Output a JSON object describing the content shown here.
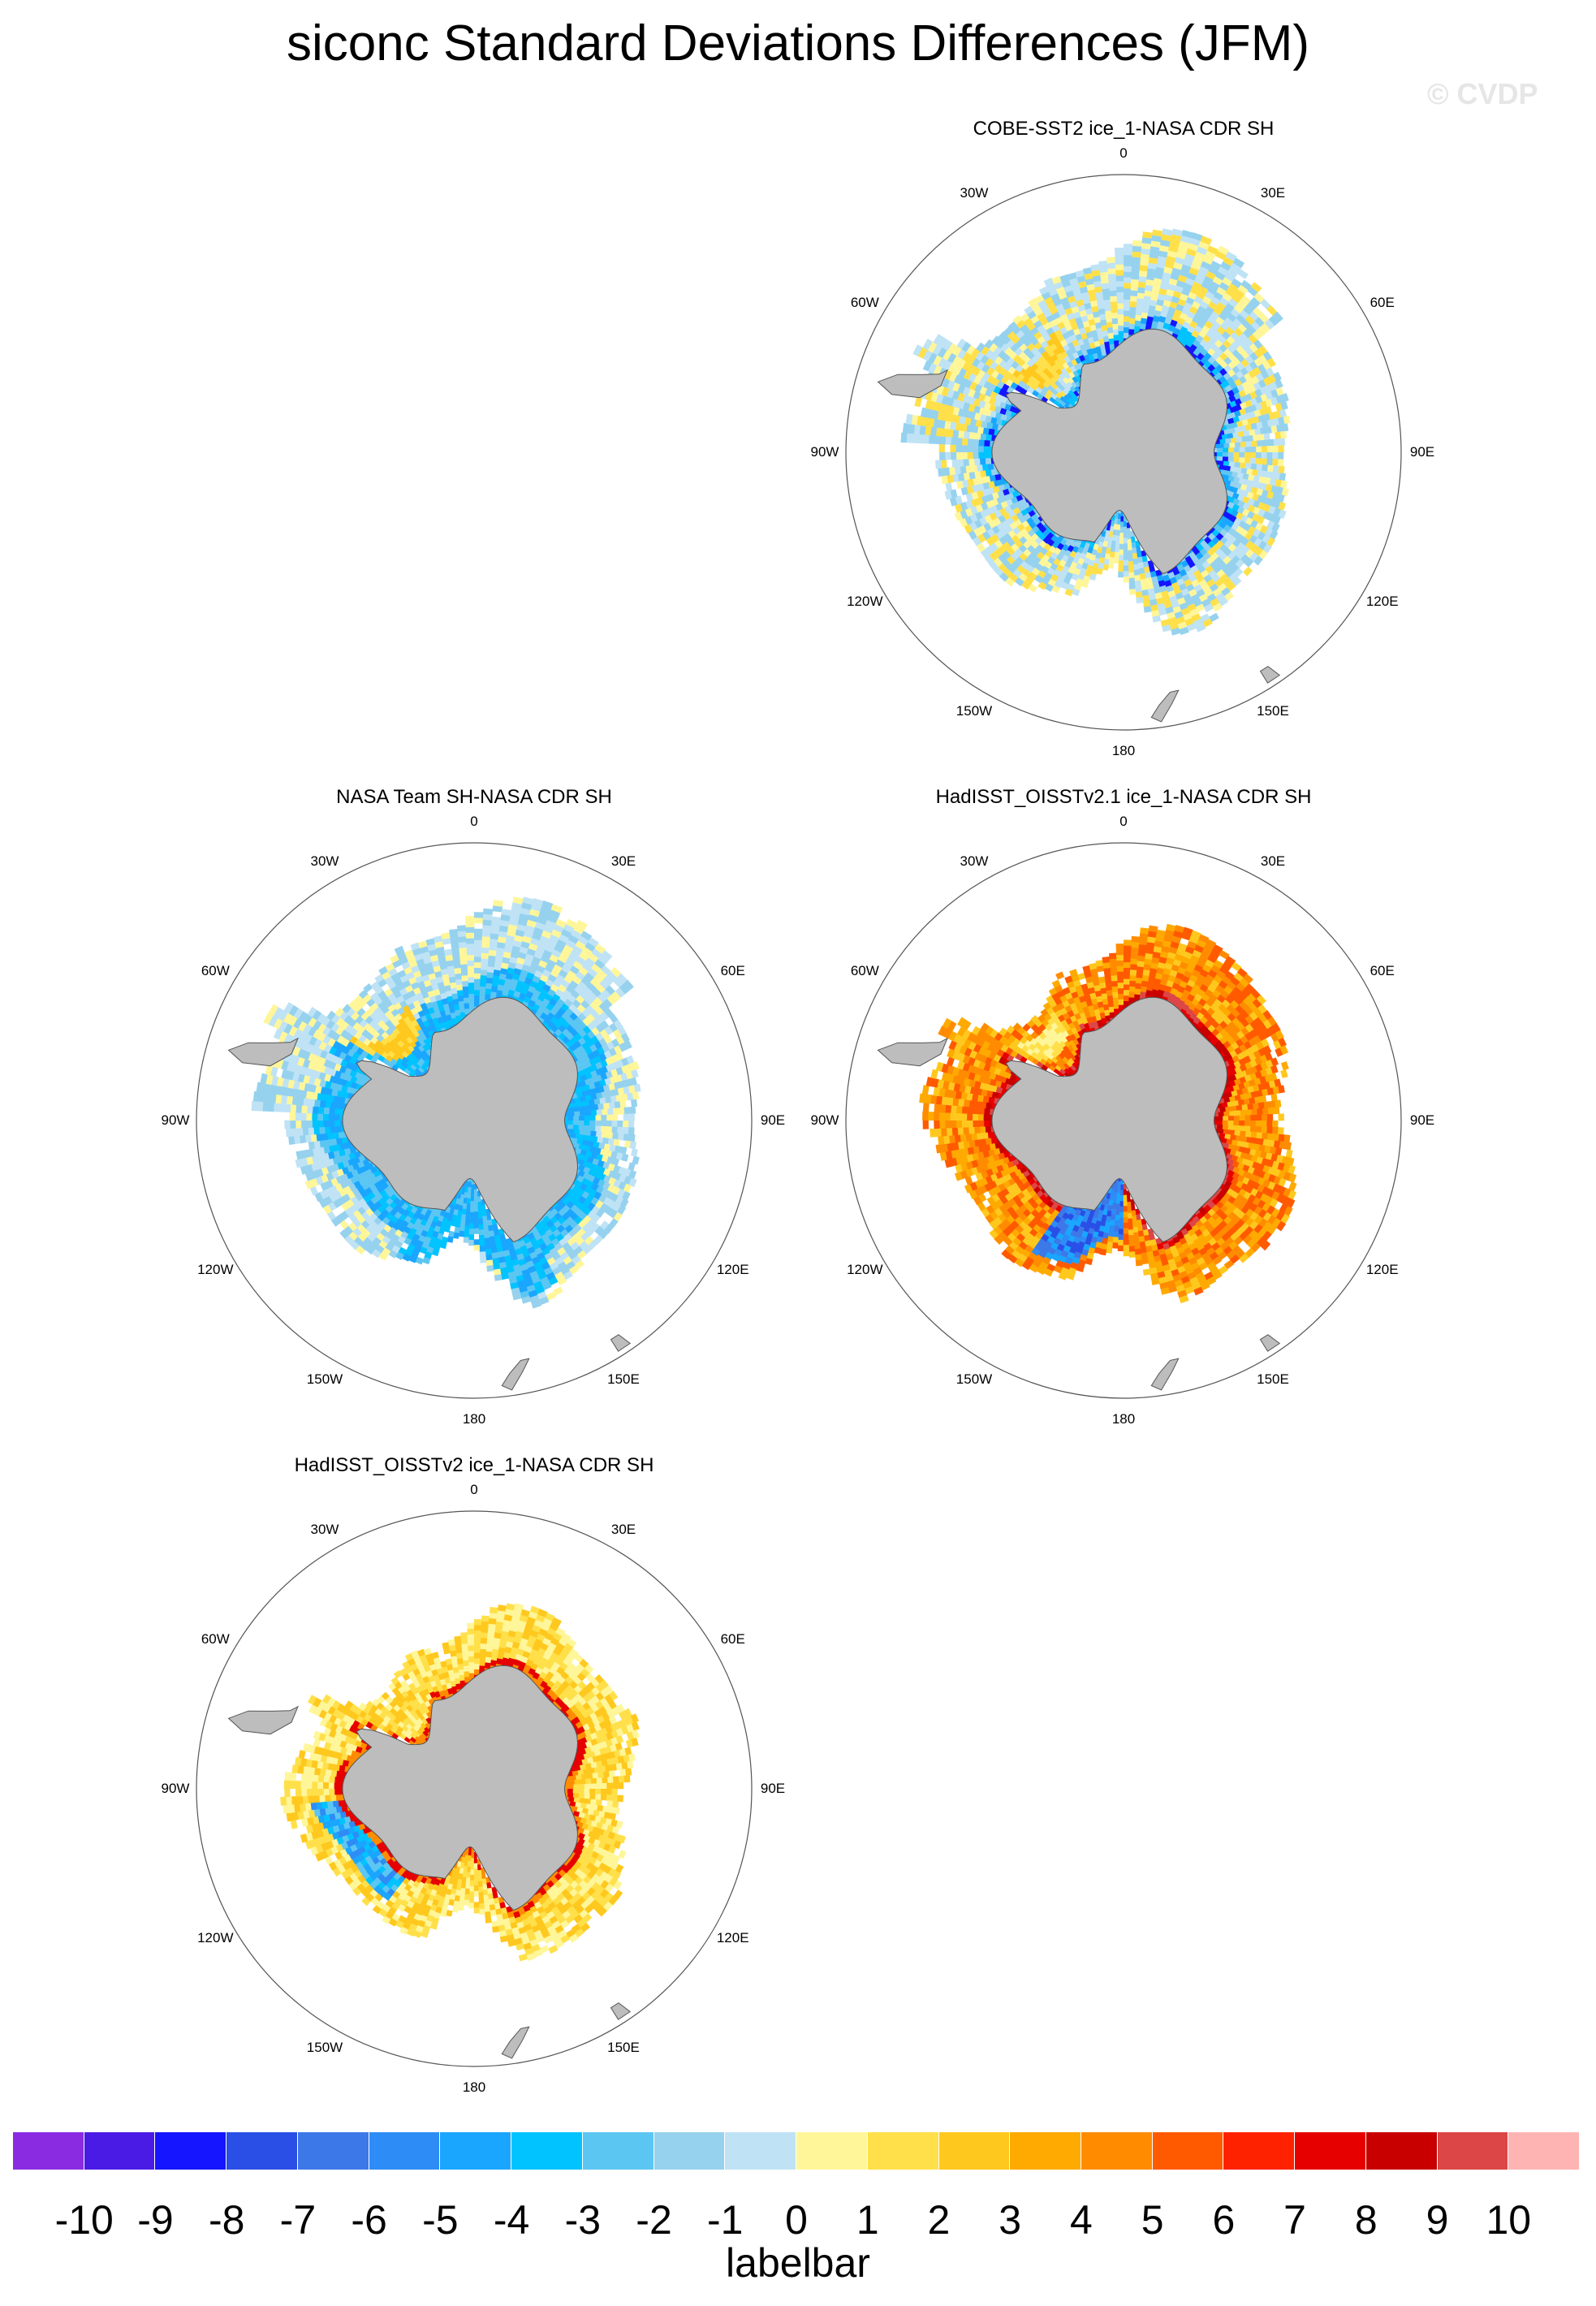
{
  "figure": {
    "title": "siconc Standard Deviations Differences (JFM)",
    "copyright": "© CVDP"
  },
  "panels": [
    {
      "title": "COBE-SST2 ice_1-NASA CDR SH",
      "pattern": "cobe"
    },
    {
      "title": "NASA Team SH-NASA CDR SH",
      "pattern": "nasateam"
    },
    {
      "title": "HadISST_OISSTv2.1 ice_1-NASA CDR SH",
      "pattern": "hadv21"
    },
    {
      "title": "HadISST_OISSTv2 ice_1-NASA CDR SH",
      "pattern": "hadv2"
    }
  ],
  "map": {
    "longitude_labels": [
      "0",
      "30E",
      "60E",
      "90E",
      "120E",
      "150E",
      "180",
      "150W",
      "120W",
      "90W",
      "60W",
      "30W"
    ],
    "land_color": "#bdbdbd",
    "ocean_color": "#ffffff"
  },
  "colorbar": {
    "title": "labelbar",
    "ticks": [
      "-10",
      "-9",
      "-8",
      "-7",
      "-6",
      "-5",
      "-4",
      "-3",
      "-2",
      "-1",
      "0",
      "1",
      "2",
      "3",
      "4",
      "5",
      "6",
      "7",
      "8",
      "9",
      "10"
    ],
    "colors": [
      "#8a2be2",
      "#4b1be6",
      "#1515ff",
      "#2a4fe6",
      "#3c78e8",
      "#2d8cf5",
      "#1aa6ff",
      "#00c3ff",
      "#5cc6f2",
      "#96d2ee",
      "#bfe3f5",
      "#fff69a",
      "#ffe04a",
      "#ffc81e",
      "#ffaa00",
      "#ff8c00",
      "#ff5a00",
      "#ff2200",
      "#e60000",
      "#c80000",
      "#dc4646",
      "#ffb4b4"
    ]
  }
}
